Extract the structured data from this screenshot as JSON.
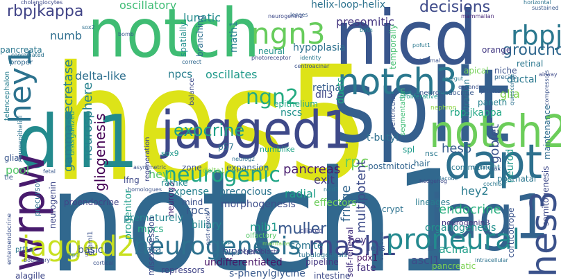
{
  "words": [
    {
      "text": "hes5",
      "color": "#dde318"
    },
    {
      "text": "notch1",
      "color": "#31688e"
    },
    {
      "text": "split",
      "color": "#355f8d"
    },
    {
      "text": "notch",
      "color": "#3fbc73"
    },
    {
      "text": "nicd",
      "color": "#39568c"
    },
    {
      "text": "dll1",
      "color": "#238a8d"
    },
    {
      "text": "jagged1",
      "color": "#3e4989"
    },
    {
      "text": "jag1",
      "color": "#33638d"
    },
    {
      "text": "notch2",
      "color": "#6ccd5a"
    },
    {
      "text": "dapt",
      "color": "#2d708e"
    },
    {
      "text": "notch3",
      "color": "#2a788e"
    },
    {
      "text": "wrpw",
      "color": "#481b6d"
    },
    {
      "text": "hes3",
      "color": "#3b528b"
    },
    {
      "text": "hey1",
      "color": "#2c728e"
    },
    {
      "text": "ngn3",
      "color": "#67cc5c"
    },
    {
      "text": "rbpj",
      "color": "#2a788e"
    },
    {
      "text": "jagged2",
      "color": "#c8e020"
    },
    {
      "text": "neurogenesis",
      "color": "#2d718e"
    },
    {
      "text": "mash1",
      "color": "#3f4788"
    },
    {
      "text": "proneural",
      "color": "#23898e"
    },
    {
      "text": "ngn2",
      "color": "#25ab82"
    },
    {
      "text": "neurogenic",
      "color": "#20a486"
    },
    {
      "text": "rbpjkappa",
      "color": "#414487"
    },
    {
      "text": "groucho",
      "color": "#31688e"
    },
    {
      "text": "exocrine",
      "color": "#1fa088"
    },
    {
      "text": "muller",
      "color": "#38588c"
    },
    {
      "text": "hes6",
      "color": "#365d8d"
    },
    {
      "text": "rpc",
      "color": "#6ece58"
    },
    {
      "text": "decisions",
      "color": "#3e4a89"
    },
    {
      "text": "neurosphere",
      "color": "#26828e"
    },
    {
      "text": "gliogenesis",
      "color": "#440154"
    },
    {
      "text": "gamma-secretase",
      "color": "#277f8e"
    },
    {
      "text": "goblet",
      "color": "#3b528b"
    },
    {
      "text": "endocrine",
      "color": "#29af7f"
    },
    {
      "text": "fringe",
      "color": "#32658e"
    },
    {
      "text": "multipotent",
      "color": "#3e4c8a"
    },
    {
      "text": "pancreas",
      "color": "#481c6e"
    },
    {
      "text": "oscillatory",
      "color": "#3dbc74"
    },
    {
      "text": "numb",
      "color": "#2e6e8e"
    },
    {
      "text": "delta-like",
      "color": "#2e6f8e"
    },
    {
      "text": "npcs",
      "color": "#287d8e"
    },
    {
      "text": "oscillates",
      "color": "#1f9a8a"
    },
    {
      "text": "presomitic",
      "color": "#453781"
    },
    {
      "text": "lunatic",
      "color": "#228c8d"
    },
    {
      "text": "helix-loop-helix",
      "color": "#2c728e"
    },
    {
      "text": "rbp-jkappa",
      "color": "#22a785"
    },
    {
      "text": "glia",
      "color": "#81d34d"
    },
    {
      "text": "hey2",
      "color": "#297b8e"
    },
    {
      "text": "neurod",
      "color": "#1f978b"
    },
    {
      "text": "retina",
      "color": "#365d8d"
    },
    {
      "text": "dll3",
      "color": "#3f4788"
    },
    {
      "text": "heyl",
      "color": "#52c569"
    },
    {
      "text": "radial",
      "color": "#1f9e89"
    },
    {
      "text": "precocious",
      "color": "#2b748e"
    },
    {
      "text": "morphogenesis",
      "color": "#3d4e8a"
    },
    {
      "text": "organogenesis",
      "color": "#21918c"
    },
    {
      "text": "biliary",
      "color": "#24868e"
    },
    {
      "text": "rpcs",
      "color": "#39568c"
    },
    {
      "text": "mib1",
      "color": "#1f988b"
    },
    {
      "text": "acinar",
      "color": "#1f9e89"
    },
    {
      "text": "ascl1",
      "color": "#3e4a89"
    },
    {
      "text": "somitogenesis",
      "color": "#3e4989"
    },
    {
      "text": "progenitor",
      "color": "#1e9c89"
    },
    {
      "text": "neurogenin",
      "color": "#3f4889"
    },
    {
      "text": "pancreata",
      "color": "#2a768e"
    },
    {
      "text": "telencephalon",
      "color": "#277e8e"
    },
    {
      "text": "proendocrine",
      "color": "#414487"
    },
    {
      "text": "expense",
      "color": "#26818e"
    },
    {
      "text": "exit",
      "color": "#443a83"
    },
    {
      "text": "nscs",
      "color": "#20928c"
    },
    {
      "text": "epithelium",
      "color": "#22a884"
    },
    {
      "text": "sox9",
      "color": "#1f9a8a"
    },
    {
      "text": "p57",
      "color": "#2c728e"
    },
    {
      "text": "numblike",
      "color": "#20a486"
    },
    {
      "text": "regeneration",
      "color": "#3e4989"
    },
    {
      "text": "t-butyl",
      "color": "#2e6f8e"
    },
    {
      "text": "spl",
      "color": "#1e9b8a"
    },
    {
      "text": "hair",
      "color": "#306a8e"
    },
    {
      "text": "commitment",
      "color": "#2a788e"
    },
    {
      "text": "postmitotic",
      "color": "#32648e"
    },
    {
      "text": "effectors",
      "color": "#6ccd5a"
    },
    {
      "text": "crypt",
      "color": "#2c718e"
    },
    {
      "text": "lineages",
      "color": "#287c8e"
    },
    {
      "text": "neurogenin3",
      "color": "#443983"
    },
    {
      "text": "self-renewal",
      "color": "#46337f"
    },
    {
      "text": "lens",
      "color": "#3a548c"
    },
    {
      "text": "basic",
      "color": "#3a538b"
    },
    {
      "text": "mpcs",
      "color": "#26ad81"
    },
    {
      "text": "clara",
      "color": "#2e6e8e"
    },
    {
      "text": "e10.5",
      "color": "#2d708e"
    },
    {
      "text": "neurog3",
      "color": "#482878"
    },
    {
      "text": "mind",
      "color": "#3b518b"
    },
    {
      "text": "prematurely",
      "color": "#25838e"
    },
    {
      "text": "undifferentiated",
      "color": "#471365"
    },
    {
      "text": "s-phenylglycine",
      "color": "#38598c"
    },
    {
      "text": "pdx1",
      "color": "#471063"
    },
    {
      "text": "fate",
      "color": "#46307e"
    },
    {
      "text": "somite",
      "color": "#2b758e"
    },
    {
      "text": "hey",
      "color": "#46327e"
    },
    {
      "text": "bipotent",
      "color": "#3b528b"
    },
    {
      "text": "ducts",
      "color": "#22a785"
    },
    {
      "text": "hypoplasia",
      "color": "#2d708e"
    },
    {
      "text": "neural",
      "color": "#21918c"
    },
    {
      "text": "math1",
      "color": "#277f8e"
    },
    {
      "text": "spatially",
      "color": "#218f8d"
    },
    {
      "text": "branching",
      "color": "#2e6e8e"
    },
    {
      "text": "glial",
      "color": "#39568c"
    },
    {
      "text": "pool",
      "color": "#52c569"
    },
    {
      "text": "lfng",
      "color": "#3e4a89"
    },
    {
      "text": "rathke",
      "color": "#228c8d"
    },
    {
      "text": "precursor",
      "color": "#2d708e"
    },
    {
      "text": "zone",
      "color": "#3b528b"
    },
    {
      "text": "expansion",
      "color": "#355f8d"
    },
    {
      "text": "delta1",
      "color": "#7ad151"
    },
    {
      "text": "ventricular",
      "color": "#3b528b"
    },
    {
      "text": "segmentation",
      "color": "#3dbc74"
    },
    {
      "text": "temporally",
      "color": "#45bf70"
    },
    {
      "text": "ultradian",
      "color": "#2a788e"
    },
    {
      "text": "apical",
      "color": "#73d055"
    },
    {
      "text": "ductal",
      "color": "#2a788e"
    },
    {
      "text": "maintenance",
      "color": "#2f6c8e"
    },
    {
      "text": "retinal",
      "color": "#2a778e"
    },
    {
      "text": "niche",
      "color": "#3b518b"
    },
    {
      "text": "orange",
      "color": "#443a83"
    },
    {
      "text": "postnatal",
      "color": "#2a768e"
    },
    {
      "text": "corticotrope",
      "color": "#3a548c"
    },
    {
      "text": "pancreatic",
      "color": "#7ad151"
    },
    {
      "text": "intestine",
      "color": "#3e4a89"
    },
    {
      "text": "hepatoblasts",
      "color": "#433e85"
    },
    {
      "text": "pipeline",
      "color": "#453882"
    },
    {
      "text": "tubulogenesis",
      "color": "#2c738e"
    },
    {
      "text": "maml1",
      "color": "#3b518b"
    },
    {
      "text": "misexpression",
      "color": "#3e4c8a"
    },
    {
      "text": "repressors",
      "color": "#414487"
    },
    {
      "text": "alagille",
      "color": "#3f4788"
    },
    {
      "text": "enteroendocrine",
      "color": "#3b518b"
    },
    {
      "text": "ptf1a",
      "color": "#2a788e"
    },
    {
      "text": "neuroendocrine",
      "color": "#38588c"
    },
    {
      "text": "proliferative",
      "color": "#1f988b"
    },
    {
      "text": "nephron",
      "color": "#8fd744"
    },
    {
      "text": "paneth",
      "color": "#26828e"
    },
    {
      "text": "pituitary",
      "color": "#39568c"
    },
    {
      "text": "precise",
      "color": "#31688e"
    },
    {
      "text": "ciliated",
      "color": "#414487"
    },
    {
      "text": "homologues",
      "color": "#3b528b"
    },
    {
      "text": "tle",
      "color": "#38588c"
    },
    {
      "text": "gut",
      "color": "#3e4a89"
    },
    {
      "text": "yap",
      "color": "#26828e"
    },
    {
      "text": "olfactory",
      "color": "#56c667"
    },
    {
      "text": "cochlear",
      "color": "#2a788e"
    },
    {
      "text": "placode",
      "color": "#2e6e8e"
    },
    {
      "text": "mosaic",
      "color": "#2d708e"
    },
    {
      "text": "mammalian",
      "color": "#482878"
    },
    {
      "text": "cholangiocytes",
      "color": "#3e4a89"
    },
    {
      "text": "identity",
      "color": "#2a788e"
    },
    {
      "text": "centroacinar",
      "color": "#3b528b"
    },
    {
      "text": "disorganized",
      "color": "#1f9e89"
    },
    {
      "text": "coordinated",
      "color": "#2c728e"
    },
    {
      "text": "sox2",
      "color": "#2d708e"
    },
    {
      "text": "proper",
      "color": "#31688e"
    },
    {
      "text": "bomb",
      "color": "#38588c"
    },
    {
      "text": "photoreceptor",
      "color": "#3e4a89"
    },
    {
      "text": "birth",
      "color": "#26828e"
    },
    {
      "text": "pofut1",
      "color": "#2a788e"
    },
    {
      "text": "horizontal",
      "color": "#2c728e"
    },
    {
      "text": "sustained",
      "color": "#38588c"
    },
    {
      "text": "airway",
      "color": "#3e4a89"
    },
    {
      "text": "foregut",
      "color": "#2a788e"
    },
    {
      "text": "expands",
      "color": "#3b528b"
    },
    {
      "text": "quiescence",
      "color": "#2d708e"
    },
    {
      "text": "compressors",
      "color": "#3b528b"
    },
    {
      "text": "nicd1",
      "color": "#2a788e"
    },
    {
      "text": "correct",
      "color": "#31688e"
    },
    {
      "text": "boundary",
      "color": "#3e4a89"
    },
    {
      "text": "mpc",
      "color": "#2a788e"
    },
    {
      "text": "cortical",
      "color": "#3b528b"
    },
    {
      "text": "cochlea",
      "color": "#31688e"
    },
    {
      "text": "intracellular",
      "color": "#2c728e"
    },
    {
      "text": "neurog2",
      "color": "#2d708e"
    },
    {
      "text": "neurogenin2",
      "color": "#3e4a89"
    },
    {
      "text": "lenses",
      "color": "#38588c"
    },
    {
      "text": "epidermal",
      "color": "#3b528b"
    },
    {
      "text": "balance",
      "color": "#3e4a89"
    },
    {
      "text": "post-mitotic",
      "color": "#3b528b"
    },
    {
      "text": "early-born",
      "color": "#38588c"
    },
    {
      "text": "hedgehog",
      "color": "#3e4a89"
    },
    {
      "text": "asymmetric",
      "color": "#3b528b"
    },
    {
      "text": "neuroepithelial",
      "color": "#2c728e"
    },
    {
      "text": "maintains",
      "color": "#7ad151"
    },
    {
      "text": "fetal",
      "color": "#38588c"
    },
    {
      "text": "rax",
      "color": "#3b528b"
    },
    {
      "text": "nsc",
      "color": "#2a788e"
    }
  ]
}
